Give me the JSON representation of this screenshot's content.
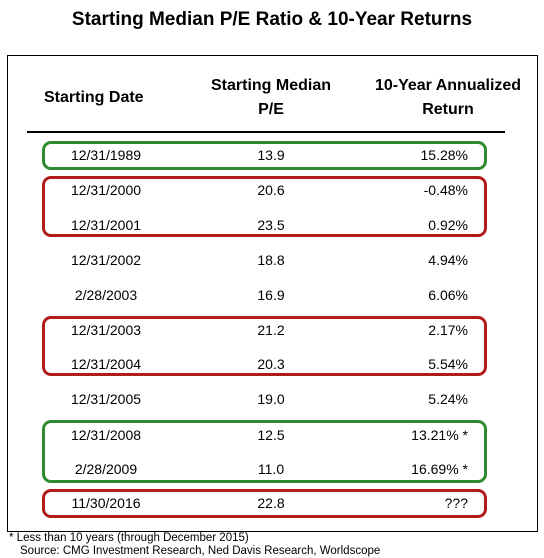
{
  "title": "Starting Median P/E Ratio & 10-Year Returns",
  "headers": {
    "date": "Starting Date",
    "pe_line1": "Starting Median",
    "pe_line2": "P/E",
    "ret_line1": "10-Year Annualized",
    "ret_line2": "Return"
  },
  "rows": [
    {
      "date": "12/31/1989",
      "pe": "13.9",
      "ret": "15.28%"
    },
    {
      "date": "12/31/2000",
      "pe": "20.6",
      "ret": "-0.48%"
    },
    {
      "date": "12/31/2001",
      "pe": "23.5",
      "ret": "0.92%"
    },
    {
      "date": "12/31/2002",
      "pe": "18.8",
      "ret": "4.94%"
    },
    {
      "date": "2/28/2003",
      "pe": "16.9",
      "ret": "6.06%"
    },
    {
      "date": "12/31/2003",
      "pe": "21.2",
      "ret": "2.17%"
    },
    {
      "date": "12/31/2004",
      "pe": "20.3",
      "ret": "5.54%"
    },
    {
      "date": "12/31/2005",
      "pe": "19.0",
      "ret": "5.24%"
    },
    {
      "date": "12/31/2008",
      "pe": "12.5",
      "ret": "13.21% *"
    },
    {
      "date": "2/28/2009",
      "pe": "11.0",
      "ret": "16.69% *"
    },
    {
      "date": "11/30/2016",
      "pe": "22.8",
      "ret": "???"
    }
  ],
  "highlight_colors": {
    "green": "#2f8a2f",
    "red": "#b01c1c"
  },
  "footnote": "* Less than 10 years (through December 2015)",
  "source": "Source: CMG Investment Research, Ned Davis Research, Worldscope"
}
